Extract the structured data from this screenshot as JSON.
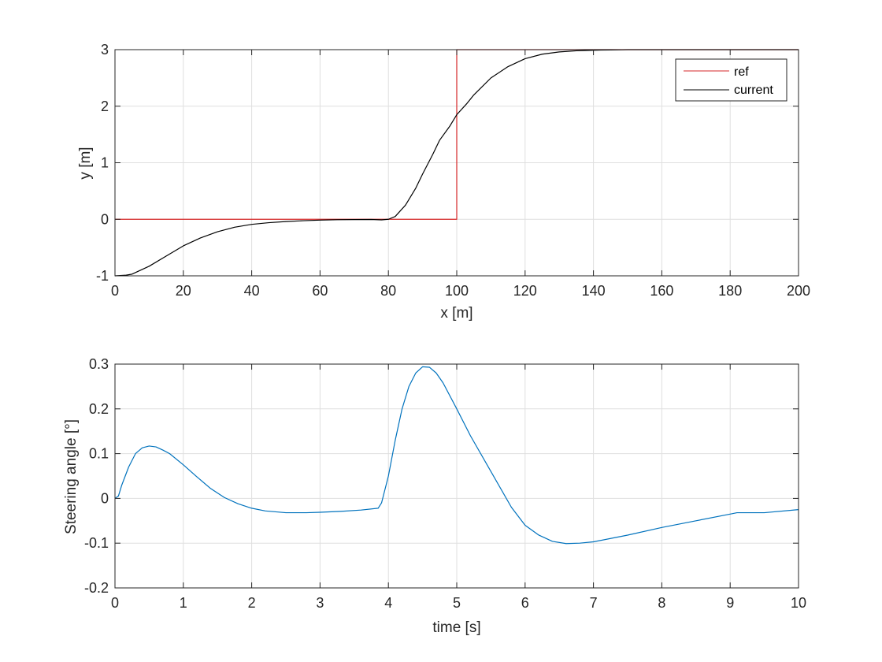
{
  "chart_data": [
    {
      "type": "line",
      "xlabel": "x [m]",
      "ylabel": "y [m]",
      "xlim": [
        0,
        200
      ],
      "ylim": [
        -1,
        3
      ],
      "xticks": [
        0,
        20,
        40,
        60,
        80,
        100,
        120,
        140,
        160,
        180,
        200
      ],
      "yticks": [
        -1,
        0,
        1,
        2,
        3
      ],
      "grid": true,
      "legend": "top-right",
      "series": [
        {
          "name": "ref",
          "color": "#d62728",
          "x": [
            0,
            100,
            100,
            200
          ],
          "y": [
            0,
            0,
            3,
            3
          ]
        },
        {
          "name": "current",
          "color": "#000000",
          "x": [
            0,
            3,
            5,
            10,
            15,
            20,
            25,
            30,
            35,
            40,
            45,
            50,
            55,
            60,
            65,
            70,
            75,
            78,
            80,
            82,
            85,
            88,
            90,
            93,
            95,
            98,
            100,
            103,
            105,
            110,
            115,
            120,
            125,
            130,
            135,
            140,
            145,
            150,
            160,
            170,
            180,
            190,
            200
          ],
          "y": [
            -1,
            -0.99,
            -0.97,
            -0.83,
            -0.65,
            -0.47,
            -0.33,
            -0.22,
            -0.14,
            -0.09,
            -0.06,
            -0.04,
            -0.025,
            -0.015,
            -0.008,
            -0.005,
            -0.003,
            -0.01,
            0.0,
            0.05,
            0.25,
            0.55,
            0.8,
            1.15,
            1.4,
            1.65,
            1.85,
            2.05,
            2.2,
            2.5,
            2.7,
            2.84,
            2.92,
            2.96,
            2.98,
            2.99,
            2.995,
            3.0,
            3.0,
            3.0,
            3.0,
            3.0,
            3.0
          ]
        }
      ]
    },
    {
      "type": "line",
      "xlabel": "time [s]",
      "ylabel": "Steering angle [°]",
      "xlim": [
        0,
        10
      ],
      "ylim": [
        -0.2,
        0.3
      ],
      "xticks": [
        0,
        1,
        2,
        3,
        4,
        5,
        6,
        7,
        8,
        9,
        10
      ],
      "yticks": [
        -0.2,
        -0.1,
        0,
        0.1,
        0.2,
        0.3
      ],
      "grid": true,
      "series": [
        {
          "color": "#0072bd",
          "x": [
            0,
            0.05,
            0.1,
            0.2,
            0.3,
            0.4,
            0.5,
            0.6,
            0.7,
            0.8,
            1.0,
            1.2,
            1.4,
            1.6,
            1.8,
            2.0,
            2.2,
            2.5,
            2.8,
            3.0,
            3.3,
            3.6,
            3.85,
            3.9,
            4.0,
            4.1,
            4.2,
            4.3,
            4.4,
            4.5,
            4.6,
            4.7,
            4.8,
            5.0,
            5.2,
            5.5,
            5.8,
            6.0,
            6.2,
            6.4,
            6.6,
            6.8,
            7.0,
            7.5,
            8.0,
            8.5,
            9.0,
            9.1,
            9.3,
            9.5,
            10.0
          ],
          "y": [
            0,
            0.005,
            0.03,
            0.07,
            0.1,
            0.113,
            0.117,
            0.115,
            0.108,
            0.1,
            0.075,
            0.048,
            0.022,
            0.002,
            -0.012,
            -0.022,
            -0.028,
            -0.032,
            -0.032,
            -0.031,
            -0.029,
            -0.026,
            -0.022,
            -0.01,
            0.05,
            0.13,
            0.2,
            0.25,
            0.28,
            0.294,
            0.293,
            0.28,
            0.258,
            0.2,
            0.14,
            0.06,
            -0.02,
            -0.06,
            -0.082,
            -0.096,
            -0.101,
            -0.1,
            -0.097,
            -0.082,
            -0.065,
            -0.05,
            -0.035,
            -0.032,
            -0.032,
            -0.032,
            -0.025
          ]
        }
      ]
    }
  ]
}
